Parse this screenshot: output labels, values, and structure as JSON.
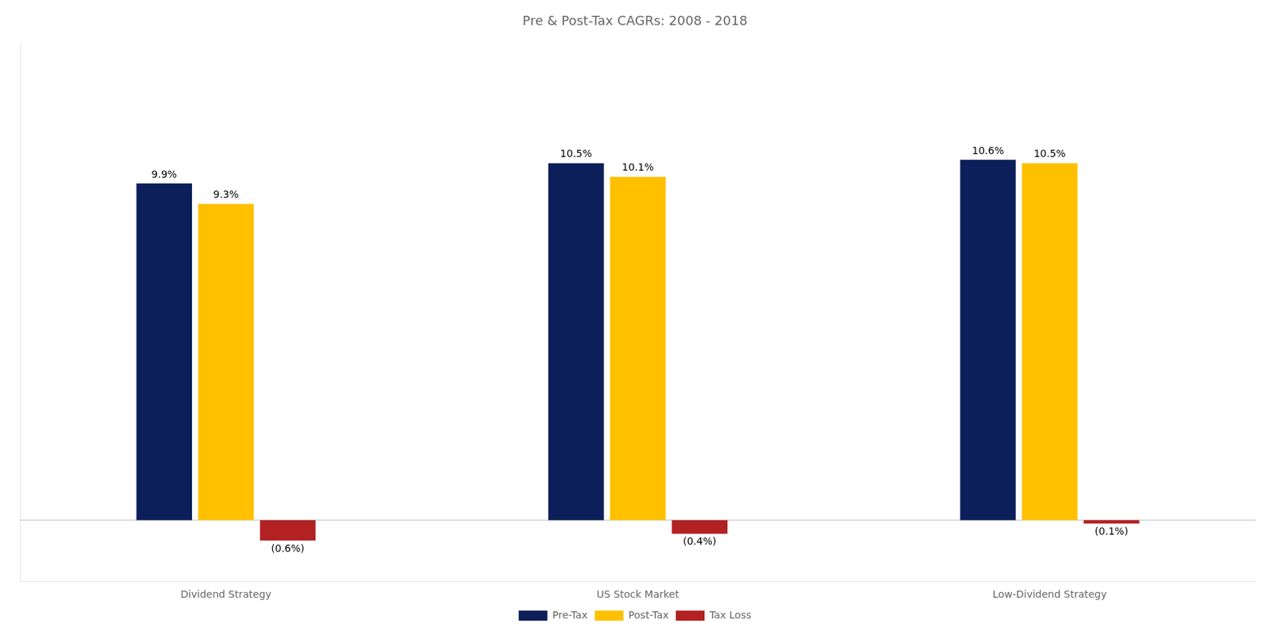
{
  "chart_data": {
    "type": "bar",
    "title": "Pre & Post-Tax CAGRs: 2008 - 2018",
    "categories": [
      "Dividend Strategy",
      "US Stock Market",
      "Low-Dividend Strategy"
    ],
    "series": [
      {
        "name": "Pre-Tax",
        "color": "#0C1F5A",
        "values": [
          9.9,
          10.5,
          10.6
        ],
        "value_labels": [
          "9.9%",
          "10.5%",
          "10.6%"
        ]
      },
      {
        "name": "Post-Tax",
        "color": "#FFC000",
        "values": [
          9.3,
          10.1,
          10.5
        ],
        "value_labels": [
          "9.3%",
          "10.1%",
          "10.5%"
        ]
      },
      {
        "name": "Tax Loss",
        "color": "#B22222",
        "values": [
          -0.6,
          -0.4,
          -0.1
        ],
        "value_labels": [
          "(0.6%)",
          "(0.4%)",
          "(0.1%)"
        ]
      }
    ],
    "ylim": [
      -1.8,
      14.0
    ],
    "grid": false,
    "legend": "bottom",
    "data_labels": true,
    "tick_labels": "x"
  }
}
